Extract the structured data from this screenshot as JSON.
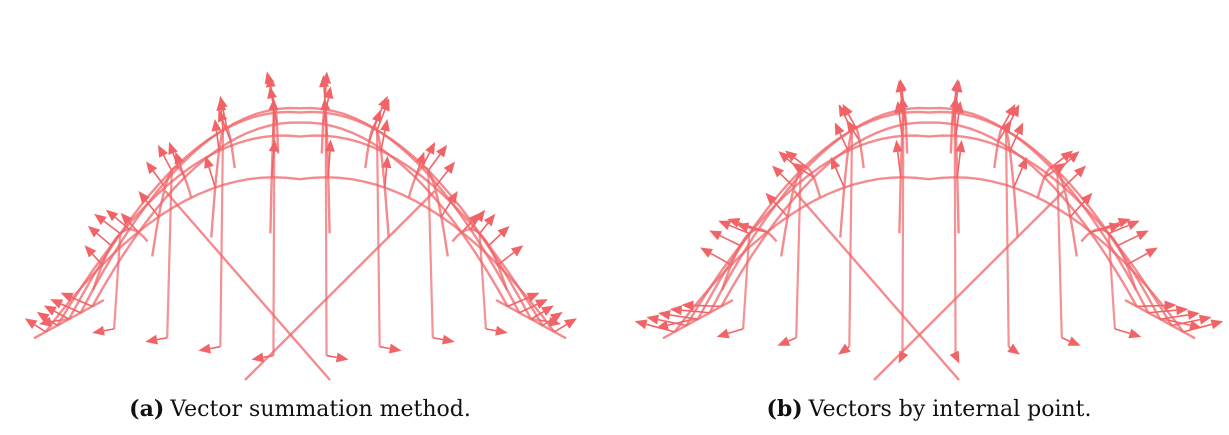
{
  "figure": {
    "panels": [
      {
        "id": "a",
        "tag": "(a)",
        "caption": "Vector summation method.",
        "color": "#f06468"
      },
      {
        "id": "b",
        "tag": "(b)",
        "caption": "Vectors by internal point.",
        "color": "#f06468"
      }
    ]
  }
}
